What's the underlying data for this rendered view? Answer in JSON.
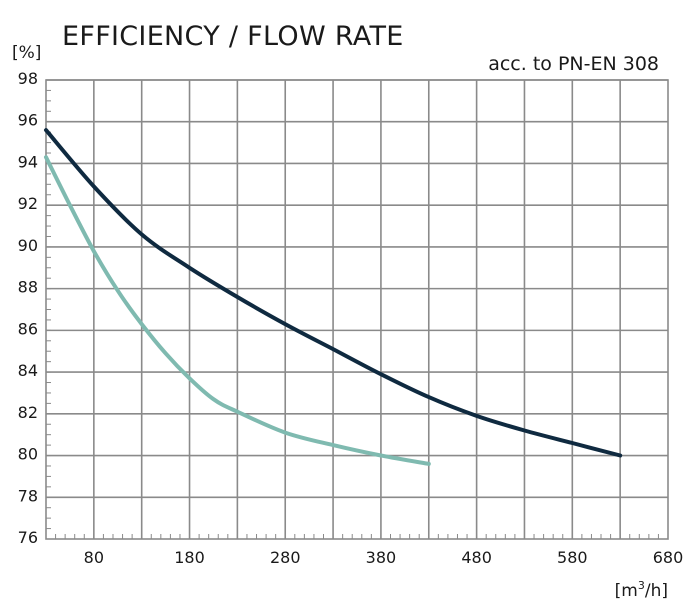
{
  "chart_data": {
    "type": "line",
    "title": "EFFICIENCY / FLOW RATE",
    "subtitle": "acc. to PN-EN 308",
    "ylabel": "[%]",
    "xlabel_base": "[m",
    "xlabel_sup": "3",
    "xlabel_tail": "/h]",
    "xlim": [
      30,
      680
    ],
    "ylim": [
      76,
      98
    ],
    "xticks": [
      80,
      180,
      280,
      380,
      480,
      580,
      680
    ],
    "xtick_labels": [
      "80",
      "180",
      "280",
      "380",
      "480",
      "580",
      "680"
    ],
    "yticks": [
      76,
      78,
      80,
      82,
      84,
      86,
      88,
      90,
      92,
      94,
      96,
      98
    ],
    "ytick_labels": [
      "76",
      "78",
      "80",
      "82",
      "84",
      "86",
      "88",
      "90",
      "92",
      "94",
      "96",
      "98"
    ],
    "grid": true,
    "series": [
      {
        "color": "#0f2a40",
        "x": [
          30,
          80,
          130,
          180,
          230,
          280,
          330,
          380,
          430,
          480,
          530,
          580,
          630
        ],
        "y": [
          95.6,
          92.9,
          90.6,
          89.0,
          87.6,
          86.3,
          85.1,
          83.9,
          82.8,
          81.9,
          81.2,
          80.6,
          80.0
        ]
      },
      {
        "color": "#7fbab0",
        "x": [
          30,
          55,
          80,
          105,
          130,
          155,
          180,
          205,
          230,
          280,
          330,
          380,
          430
        ],
        "y": [
          94.3,
          92.0,
          89.8,
          87.9,
          86.3,
          84.9,
          83.7,
          82.7,
          82.1,
          81.1,
          80.5,
          80.0,
          79.6
        ]
      }
    ]
  }
}
